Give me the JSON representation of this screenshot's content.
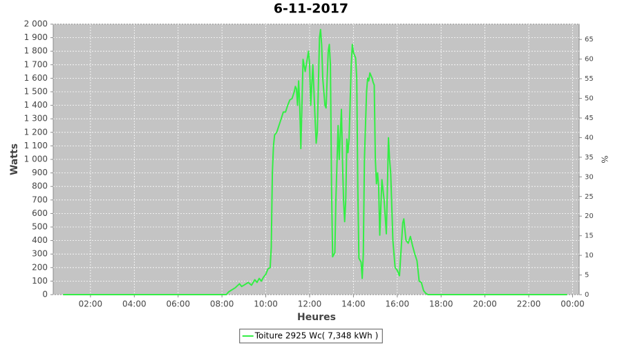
{
  "chart_data": {
    "type": "line",
    "title": "6-11-2017",
    "xlabel": "Heures",
    "ylabel": "Watts",
    "y2label": "%",
    "x": [
      0.75,
      8.0,
      8.2,
      8.3,
      8.4,
      8.6,
      8.8,
      8.9,
      9.0,
      9.2,
      9.35,
      9.5,
      9.6,
      9.7,
      9.8,
      9.9,
      10.0,
      10.1,
      10.2,
      10.25,
      10.3,
      10.35,
      10.4,
      10.5,
      10.6,
      10.7,
      10.8,
      10.9,
      11.0,
      11.1,
      11.2,
      11.3,
      11.35,
      11.4,
      11.45,
      11.5,
      11.55,
      11.6,
      11.65,
      11.7,
      11.8,
      11.9,
      11.95,
      12.0,
      12.05,
      12.15,
      12.25,
      12.3,
      12.35,
      12.45,
      12.5,
      12.55,
      12.6,
      12.7,
      12.75,
      12.85,
      12.9,
      12.95,
      13.0,
      13.05,
      13.15,
      13.2,
      13.3,
      13.35,
      13.45,
      13.5,
      13.55,
      13.6,
      13.65,
      13.7,
      13.75,
      13.8,
      13.9,
      13.95,
      14.0,
      14.1,
      14.15,
      14.2,
      14.25,
      14.35,
      14.4,
      14.45,
      14.5,
      14.6,
      14.65,
      14.7,
      14.75,
      14.85,
      14.9,
      14.95,
      15.0,
      15.05,
      15.1,
      15.15,
      15.2,
      15.3,
      15.4,
      15.5,
      15.55,
      15.6,
      15.65,
      15.7,
      15.8,
      15.9,
      16.0,
      16.1,
      16.2,
      16.25,
      16.3,
      16.4,
      16.5,
      16.6,
      16.7,
      16.8,
      16.9,
      17.0,
      17.1,
      17.2,
      17.3,
      17.4,
      23.75
    ],
    "series": [
      {
        "name": "Toiture 2925 Wc( 7,348 kWh )",
        "color": "#33ee44",
        "values": [
          0,
          0,
          0,
          20,
          30,
          50,
          80,
          60,
          70,
          90,
          70,
          110,
          90,
          120,
          100,
          130,
          150,
          190,
          200,
          350,
          900,
          1100,
          1180,
          1200,
          1250,
          1300,
          1350,
          1350,
          1400,
          1440,
          1450,
          1500,
          1540,
          1520,
          1400,
          1580,
          1400,
          1080,
          1400,
          1740,
          1650,
          1750,
          1800,
          1700,
          1400,
          1700,
          1300,
          1120,
          1200,
          1900,
          1960,
          1850,
          1600,
          1400,
          1380,
          1800,
          1850,
          1700,
          800,
          280,
          310,
          700,
          1250,
          1000,
          1370,
          1000,
          700,
          540,
          700,
          1150,
          1050,
          1150,
          1700,
          1850,
          1790,
          1750,
          1600,
          800,
          270,
          240,
          120,
          300,
          1000,
          1500,
          1600,
          1580,
          1640,
          1600,
          1570,
          1550,
          1000,
          820,
          900,
          800,
          440,
          850,
          700,
          450,
          800,
          1160,
          1000,
          900,
          400,
          200,
          180,
          140,
          400,
          530,
          560,
          400,
          380,
          430,
          360,
          300,
          250,
          100,
          90,
          30,
          10,
          0,
          0
        ]
      }
    ],
    "xlim": [
      0.3,
      24.3
    ],
    "xticks": [
      {
        "value": 2,
        "label": "02:00"
      },
      {
        "value": 4,
        "label": "04:00"
      },
      {
        "value": 6,
        "label": "06:00"
      },
      {
        "value": 8,
        "label": "08:00"
      },
      {
        "value": 10,
        "label": "10:00"
      },
      {
        "value": 12,
        "label": "12:00"
      },
      {
        "value": 14,
        "label": "14:00"
      },
      {
        "value": 16,
        "label": "16:00"
      },
      {
        "value": 18,
        "label": "18:00"
      },
      {
        "value": 20,
        "label": "20:00"
      },
      {
        "value": 22,
        "label": "22:00"
      },
      {
        "value": 24,
        "label": "00:00"
      }
    ],
    "ylim": [
      0,
      2000
    ],
    "yticks": [
      0,
      100,
      200,
      300,
      400,
      500,
      600,
      700,
      800,
      900,
      {
        "value": 1000,
        "label": "1 000"
      },
      {
        "value": 1100,
        "label": "1 100"
      },
      {
        "value": 1200,
        "label": "1 200"
      },
      {
        "value": 1300,
        "label": "1 300"
      },
      {
        "value": 1400,
        "label": "1 400"
      },
      {
        "value": 1500,
        "label": "1 500"
      },
      {
        "value": 1600,
        "label": "1 600"
      },
      {
        "value": 1700,
        "label": "1 700"
      },
      {
        "value": 1800,
        "label": "1 800"
      },
      {
        "value": 1900,
        "label": "1 900"
      },
      {
        "value": 2000,
        "label": "2 000"
      }
    ],
    "y2lim": [
      0,
      68.9
    ],
    "y2ticks": [
      0,
      5,
      10,
      15,
      20,
      25,
      30,
      35,
      40,
      45,
      50,
      55,
      60,
      65
    ],
    "grid": true,
    "legend": "bottom"
  }
}
